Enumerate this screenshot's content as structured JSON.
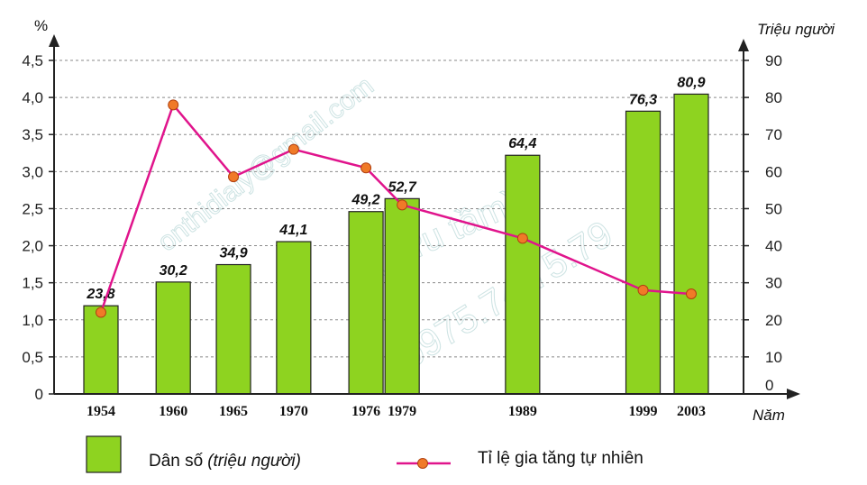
{
  "chart_data": {
    "type": "bar+line",
    "categories": [
      "1954",
      "1960",
      "1965",
      "1970",
      "1976",
      "1979",
      "1989",
      "1999",
      "2003"
    ],
    "series": [
      {
        "name": "Dân số",
        "name_unit": "(triệu người)",
        "kind": "bar",
        "axis": "right",
        "values": [
          23.8,
          30.2,
          34.9,
          41.1,
          49.2,
          52.7,
          64.4,
          76.3,
          80.9
        ],
        "labels": [
          "23,8",
          "30,2",
          "34,9",
          "41,1",
          "49,2",
          "52,7",
          "64,4",
          "76,3",
          "80,9"
        ],
        "color": "#8ed320"
      },
      {
        "name": "Tỉ lệ gia tăng tự nhiên",
        "kind": "line",
        "axis": "left",
        "values": [
          1.1,
          3.9,
          2.93,
          3.3,
          3.05,
          2.55,
          2.1,
          1.4,
          1.35
        ],
        "line_color": "#e0148c",
        "marker_color": "#f07a28"
      }
    ],
    "left_axis": {
      "unit": "%",
      "ylim": [
        0,
        4.5
      ],
      "ticks": [
        0,
        0.5,
        1.0,
        1.5,
        2.0,
        2.5,
        3.0,
        3.5,
        4.0,
        4.5
      ],
      "tick_labels": [
        "0",
        "0,5",
        "1,0",
        "1,5",
        "2,0",
        "2,5",
        "3,0",
        "3,5",
        "4,0",
        "4,5"
      ]
    },
    "right_axis": {
      "unit": "Triệu người",
      "ylim": [
        0,
        90
      ],
      "ticks": [
        0,
        10,
        20,
        30,
        40,
        50,
        60,
        70,
        80,
        90
      ],
      "tick_labels": [
        "0",
        "10",
        "20",
        "30",
        "40",
        "50",
        "60",
        "70",
        "80",
        "90"
      ]
    },
    "x_axis": {
      "label": "Năm"
    },
    "grid": true,
    "legend_position": "bottom",
    "legend": {
      "bar_label": "Dân số",
      "bar_label_unit": "(triệu người)",
      "line_label": "Tỉ lệ gia tăng tự nhiên"
    },
    "watermarks": [
      "onthidialy@gmail.com",
      "(sưu tầm)",
      "0975.74.75.79"
    ]
  }
}
